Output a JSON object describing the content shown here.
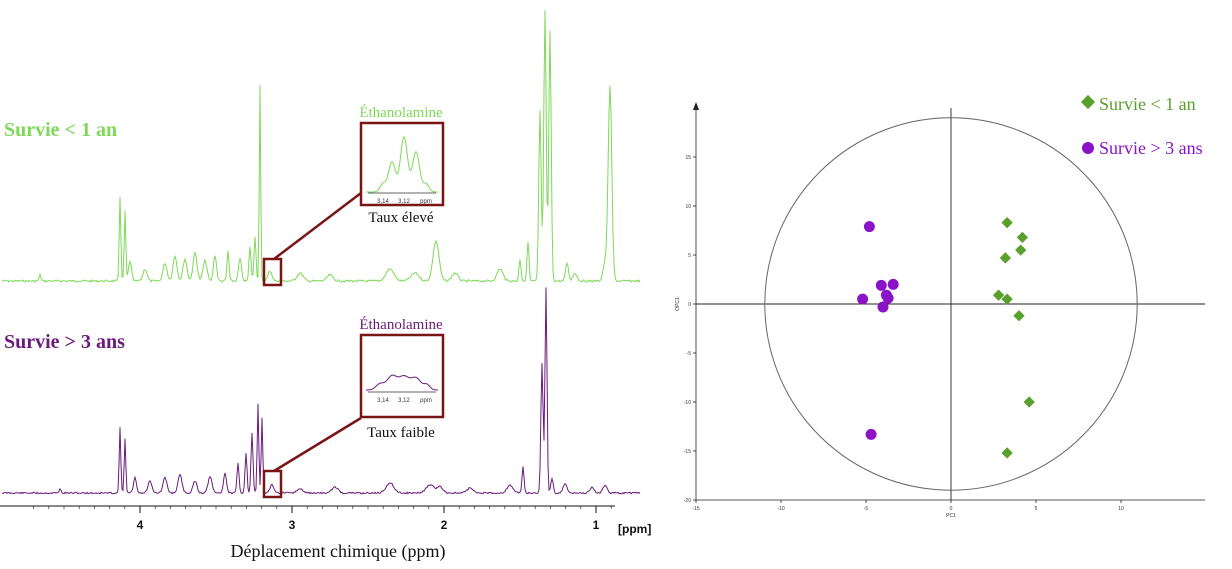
{
  "colors": {
    "group_short": "#7ed957",
    "group_long": "#6a1b7a",
    "zoom_box": "#7a1515",
    "pca_diamond": "#5aa02c",
    "pca_circle": "#8a12c7",
    "axis": "#222222"
  },
  "nmr": {
    "label_short": "Survie < 1 an",
    "label_long": "Survie > 3 ans",
    "x_axis_label": "Déplacement chimique (ppm)",
    "x_unit": "[ppm]",
    "x_ticks": [
      "4",
      "3",
      "2",
      "1"
    ],
    "inset_short": {
      "title": "Éthanolamine",
      "caption": "Taux élevé",
      "tick_labels": [
        "3,14",
        "3,12",
        "ppm"
      ]
    },
    "inset_long": {
      "title": "Éthanolamine",
      "caption": "Taux faible",
      "tick_labels": [
        "3,14",
        "3,12",
        "ppm"
      ]
    }
  },
  "chart_data": {
    "type": "scatter",
    "xlabel": "PC1",
    "ylabel": "OPC1",
    "xlim": [
      -15,
      15
    ],
    "ylim": [
      -20,
      20
    ],
    "x_ticks": [
      "-15",
      "-10",
      "-5",
      "0",
      "5",
      "10"
    ],
    "y_ticks": [
      "15",
      "10",
      "5",
      "0",
      "-5",
      "-10",
      "-15",
      "-20"
    ],
    "legend_position": "top-right",
    "series": [
      {
        "name": "Survie < 1 an",
        "marker": "diamond",
        "points": [
          [
            3.3,
            8.3
          ],
          [
            4.2,
            6.8
          ],
          [
            4.1,
            5.5
          ],
          [
            3.2,
            4.7
          ],
          [
            2.8,
            0.9
          ],
          [
            3.3,
            0.5
          ],
          [
            4.0,
            -1.2
          ],
          [
            4.6,
            -10.0
          ],
          [
            3.3,
            -15.2
          ]
        ]
      },
      {
        "name": "Survie > 3 ans",
        "marker": "circle",
        "points": [
          [
            -4.8,
            7.9
          ],
          [
            -5.2,
            0.5
          ],
          [
            -4.1,
            1.9
          ],
          [
            -3.4,
            2.0
          ],
          [
            -3.8,
            0.9
          ],
          [
            -3.7,
            0.6
          ],
          [
            -4.0,
            -0.3
          ],
          [
            -4.7,
            -13.3
          ]
        ]
      }
    ]
  }
}
